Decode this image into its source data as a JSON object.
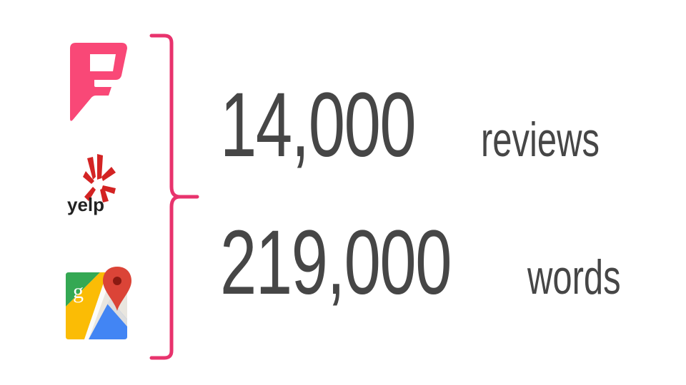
{
  "logos": {
    "foursquare": {
      "icon": "foursquare-logo-icon",
      "color": "#f94877"
    },
    "yelp": {
      "icon": "yelp-logo-icon",
      "wordmark": "yelp",
      "color": "#d32323"
    },
    "google_maps": {
      "icon": "google-maps-logo-icon",
      "letter": "g"
    }
  },
  "brace": {
    "color": "#e8336d"
  },
  "stats": [
    {
      "number": "14,000",
      "unit": "reviews"
    },
    {
      "number": "219,000",
      "unit": "words"
    }
  ],
  "colors": {
    "text": "#464646",
    "foursquare": "#f94877",
    "yelp": "#d32323",
    "brace": "#e8336d"
  }
}
